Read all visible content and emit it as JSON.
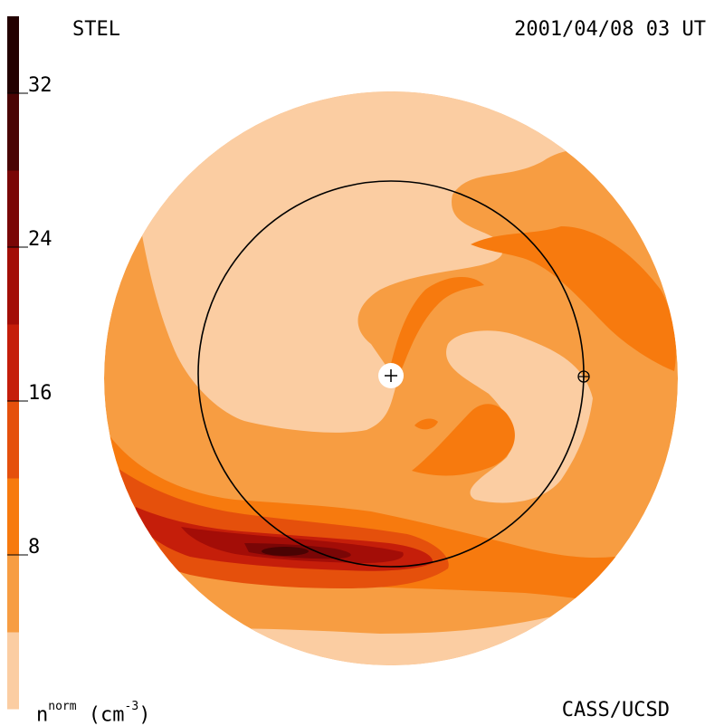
{
  "header": {
    "left_label": "STEL",
    "right_label": "2001/04/08 03 UT"
  },
  "footer": {
    "credit": "CASS/UCSD",
    "units_base": "n",
    "units_sup": "norm",
    "units_paren_open": " (cm",
    "units_exp": "-3",
    "units_paren_close": ")"
  },
  "colors": {
    "level_0_4": "#FBCDA2",
    "level_4_8": "#F79D42",
    "level_8_12": "#F77A0E",
    "level_12_16": "#E5500C",
    "level_16_20": "#C51E0A",
    "level_20_24": "#A30D07",
    "level_24_28": "#7A0606",
    "level_28_32": "#4A0303",
    "level_32_plus": "#230101",
    "ring": "#000000",
    "background": "#ffffff"
  },
  "chart_data": {
    "type": "heatmap",
    "title": "",
    "colorbar": {
      "orientation": "vertical",
      "placement": "left",
      "range": [
        0,
        36
      ],
      "tick_values": [
        8,
        16,
        24,
        32
      ],
      "tick_labels": [
        "8",
        "16",
        "24",
        "32"
      ],
      "levels": [
        {
          "from": 0,
          "to": 4,
          "color_key": "level_0_4"
        },
        {
          "from": 4,
          "to": 8,
          "color_key": "level_4_8"
        },
        {
          "from": 8,
          "to": 12,
          "color_key": "level_8_12"
        },
        {
          "from": 12,
          "to": 16,
          "color_key": "level_12_16"
        },
        {
          "from": 16,
          "to": 20,
          "color_key": "level_16_20"
        },
        {
          "from": 20,
          "to": 24,
          "color_key": "level_20_24"
        },
        {
          "from": 24,
          "to": 28,
          "color_key": "level_24_28"
        },
        {
          "from": 28,
          "to": 32,
          "color_key": "level_28_32"
        },
        {
          "from": 32,
          "to": 36,
          "color_key": "level_32_plus"
        }
      ]
    },
    "markers": [
      {
        "name": "sun",
        "symbol": "plus-in-white-disk"
      },
      {
        "name": "earth",
        "symbol": "circled-plus"
      }
    ],
    "reference_ring": "earth-orbit"
  }
}
